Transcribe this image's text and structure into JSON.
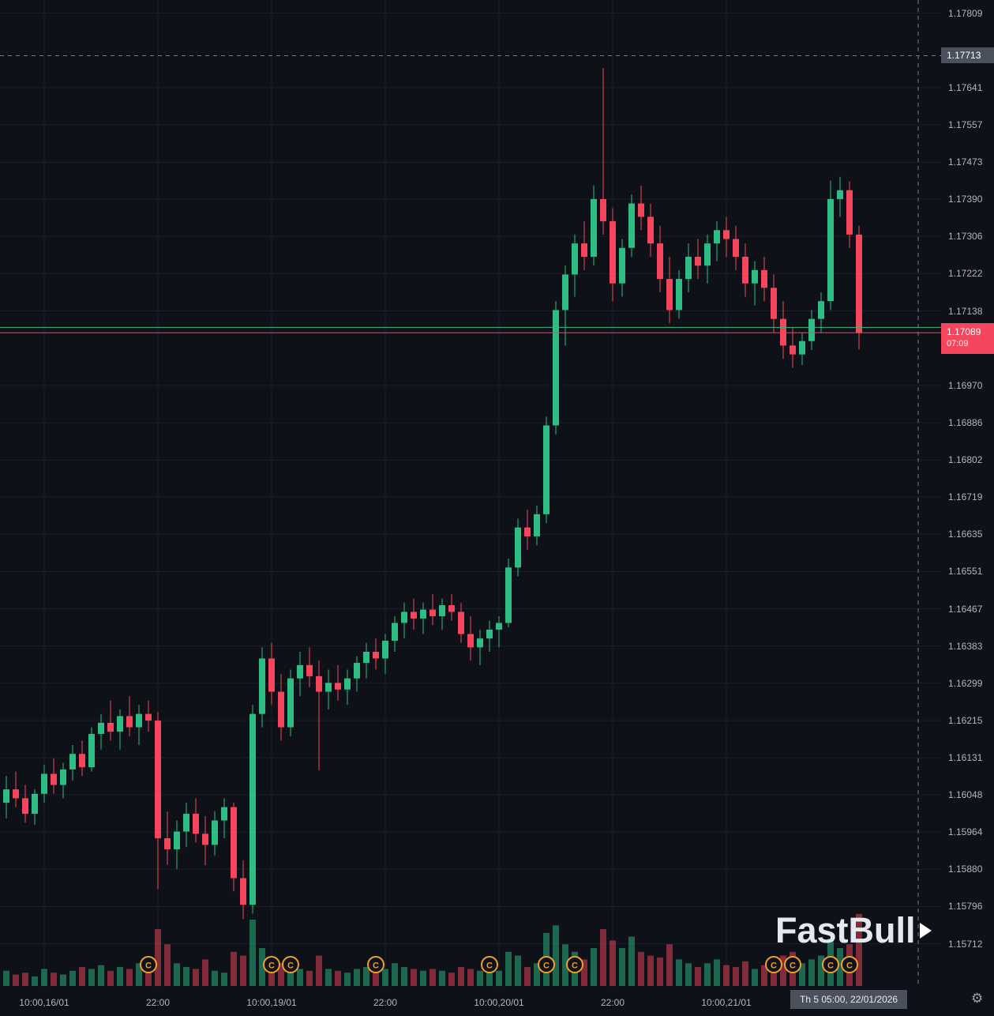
{
  "chart": {
    "background": "#0e1118",
    "grid_color": "#1a1f2b"
  },
  "price_axis": {
    "ticks": [
      "1.17809",
      "1.17641",
      "1.17557",
      "1.17473",
      "1.17390",
      "1.17306",
      "1.17222",
      "1.17138",
      "1.16970",
      "1.16886",
      "1.16802",
      "1.16719",
      "1.16635",
      "1.16551",
      "1.16467",
      "1.16383",
      "1.16299",
      "1.16215",
      "1.16131",
      "1.16048",
      "1.15964",
      "1.15880",
      "1.15796",
      "1.15712"
    ],
    "crosshair_price": "1.17713",
    "current_price": "1.17089",
    "current_countdown": "07:09",
    "current_badge_color": "#f6465d",
    "crosshair_badge_color": "#4a505c"
  },
  "time_axis": {
    "labels": [
      {
        "text": "10:00,16/01",
        "index": 4
      },
      {
        "text": "22:00",
        "index": 16
      },
      {
        "text": "10:00,19/01",
        "index": 28
      },
      {
        "text": "22:00",
        "index": 40
      },
      {
        "text": "10:00,20/01",
        "index": 52
      },
      {
        "text": "22:00",
        "index": 64
      },
      {
        "text": "10:00,21/01",
        "index": 76
      }
    ],
    "crosshair_label": "Th 5 05:00, 22/01/2026"
  },
  "watermark": {
    "text": "FastBull"
  },
  "icons": {
    "settings": "⚙",
    "logo_arrow": "triangle-right",
    "calendar_event": "C"
  },
  "chart_data": {
    "type": "candlestick",
    "y_axis": {
      "price_at_top": 1.178385,
      "price_per_pixel": 1.78e-05,
      "ylim": [
        1.15712,
        1.17838
      ]
    },
    "current_price": 1.17089,
    "secondary_line_price": 1.17101,
    "crosshair": {
      "price": 1.17713,
      "time_label": "Th 5 05:00, 22/01/2026"
    },
    "colors": {
      "up": "#2ebd85",
      "down": "#f6465d",
      "volume_up": "rgba(46,189,133,0.5)",
      "volume_down": "rgba(246,70,93,0.5)",
      "current_line": "#f6465d",
      "secondary_line": "#2ebd85",
      "crosshair": "#787b86",
      "event_marker": "#f0a029"
    },
    "candles": [
      [
        1.1603,
        1.1609,
        1.15995,
        1.1606
      ],
      [
        1.1606,
        1.161,
        1.1602,
        1.1604
      ],
      [
        1.1604,
        1.1607,
        1.15985,
        1.16005
      ],
      [
        1.16005,
        1.1606,
        1.1598,
        1.1605
      ],
      [
        1.1605,
        1.16115,
        1.1603,
        1.16095
      ],
      [
        1.16095,
        1.1613,
        1.1605,
        1.1607
      ],
      [
        1.1607,
        1.1612,
        1.1604,
        1.16105
      ],
      [
        1.16105,
        1.1616,
        1.1608,
        1.1614
      ],
      [
        1.1614,
        1.1617,
        1.1609,
        1.1611
      ],
      [
        1.1611,
        1.162,
        1.161,
        1.16185
      ],
      [
        1.16185,
        1.1623,
        1.1615,
        1.1621
      ],
      [
        1.1621,
        1.1626,
        1.1617,
        1.1619
      ],
      [
        1.1619,
        1.1624,
        1.1615,
        1.16225
      ],
      [
        1.16225,
        1.1627,
        1.1618,
        1.162
      ],
      [
        1.162,
        1.1625,
        1.1616,
        1.1623
      ],
      [
        1.1623,
        1.1626,
        1.1619,
        1.16215
      ],
      [
        1.16215,
        1.16235,
        1.15836,
        1.1595
      ],
      [
        1.1595,
        1.1601,
        1.1589,
        1.15925
      ],
      [
        1.15925,
        1.1599,
        1.1588,
        1.15965
      ],
      [
        1.15965,
        1.1603,
        1.1593,
        1.16005
      ],
      [
        1.16005,
        1.1604,
        1.1594,
        1.1596
      ],
      [
        1.1596,
        1.16,
        1.15889,
        1.15935
      ],
      [
        1.15935,
        1.1601,
        1.1591,
        1.1599
      ],
      [
        1.1599,
        1.1604,
        1.1595,
        1.1602
      ],
      [
        1.1602,
        1.1603,
        1.1583,
        1.1586
      ],
      [
        1.1586,
        1.159,
        1.15768,
        1.158
      ],
      [
        1.158,
        1.1625,
        1.1578,
        1.1623
      ],
      [
        1.1623,
        1.1638,
        1.162,
        1.16355
      ],
      [
        1.16355,
        1.1639,
        1.1625,
        1.1628
      ],
      [
        1.1628,
        1.1632,
        1.1617,
        1.162
      ],
      [
        1.162,
        1.1633,
        1.1618,
        1.1631
      ],
      [
        1.1631,
        1.1637,
        1.1627,
        1.1634
      ],
      [
        1.1634,
        1.1638,
        1.1629,
        1.16315
      ],
      [
        1.16315,
        1.1635,
        1.16103,
        1.1628
      ],
      [
        1.1628,
        1.1633,
        1.1624,
        1.163
      ],
      [
        1.163,
        1.1634,
        1.1626,
        1.16285
      ],
      [
        1.16285,
        1.1633,
        1.1625,
        1.1631
      ],
      [
        1.1631,
        1.1636,
        1.1628,
        1.16345
      ],
      [
        1.16345,
        1.1639,
        1.1631,
        1.1637
      ],
      [
        1.1637,
        1.164,
        1.1633,
        1.16355
      ],
      [
        1.16355,
        1.1641,
        1.1632,
        1.16395
      ],
      [
        1.16395,
        1.1645,
        1.1637,
        1.16435
      ],
      [
        1.16435,
        1.1648,
        1.164,
        1.1646
      ],
      [
        1.1646,
        1.1649,
        1.1642,
        1.16445
      ],
      [
        1.16445,
        1.1648,
        1.1641,
        1.16465
      ],
      [
        1.16465,
        1.165,
        1.1643,
        1.1645
      ],
      [
        1.1645,
        1.1649,
        1.1642,
        1.16475
      ],
      [
        1.16475,
        1.165,
        1.1644,
        1.1646
      ],
      [
        1.1646,
        1.1648,
        1.1639,
        1.1641
      ],
      [
        1.1641,
        1.1645,
        1.1635,
        1.1638
      ],
      [
        1.1638,
        1.1642,
        1.1634,
        1.164
      ],
      [
        1.164,
        1.1644,
        1.1637,
        1.1642
      ],
      [
        1.1642,
        1.1645,
        1.1638,
        1.16435
      ],
      [
        1.16435,
        1.1658,
        1.16425,
        1.1656
      ],
      [
        1.1656,
        1.1667,
        1.1654,
        1.1665
      ],
      [
        1.1665,
        1.1669,
        1.166,
        1.1663
      ],
      [
        1.1663,
        1.167,
        1.1661,
        1.1668
      ],
      [
        1.1668,
        1.169,
        1.1666,
        1.1688
      ],
      [
        1.1688,
        1.1716,
        1.1686,
        1.1714
      ],
      [
        1.1714,
        1.1724,
        1.1706,
        1.1722
      ],
      [
        1.1722,
        1.1731,
        1.1717,
        1.1729
      ],
      [
        1.1729,
        1.1734,
        1.1723,
        1.1726
      ],
      [
        1.1726,
        1.1742,
        1.1724,
        1.1739
      ],
      [
        1.1739,
        1.17685,
        1.1731,
        1.1734
      ],
      [
        1.1734,
        1.1737,
        1.1716,
        1.172
      ],
      [
        1.172,
        1.173,
        1.1717,
        1.1728
      ],
      [
        1.1728,
        1.174,
        1.1726,
        1.1738
      ],
      [
        1.1738,
        1.1742,
        1.1732,
        1.1735
      ],
      [
        1.1735,
        1.1738,
        1.1726,
        1.1729
      ],
      [
        1.1729,
        1.1733,
        1.1718,
        1.1721
      ],
      [
        1.1721,
        1.1726,
        1.1711,
        1.1714
      ],
      [
        1.1714,
        1.1723,
        1.1712,
        1.1721
      ],
      [
        1.1721,
        1.1729,
        1.1718,
        1.1726
      ],
      [
        1.1726,
        1.173,
        1.1721,
        1.1724
      ],
      [
        1.1724,
        1.1731,
        1.172,
        1.1729
      ],
      [
        1.1729,
        1.1734,
        1.1725,
        1.1732
      ],
      [
        1.1732,
        1.1735,
        1.1726,
        1.173
      ],
      [
        1.173,
        1.1733,
        1.1723,
        1.1726
      ],
      [
        1.1726,
        1.1729,
        1.1717,
        1.172
      ],
      [
        1.172,
        1.1725,
        1.1715,
        1.1723
      ],
      [
        1.1723,
        1.1726,
        1.1716,
        1.1719
      ],
      [
        1.1719,
        1.1722,
        1.1709,
        1.1712
      ],
      [
        1.1712,
        1.1716,
        1.1703,
        1.1706
      ],
      [
        1.1706,
        1.171,
        1.1701,
        1.1704
      ],
      [
        1.1704,
        1.1709,
        1.17016,
        1.1707
      ],
      [
        1.1707,
        1.1714,
        1.1705,
        1.1712
      ],
      [
        1.1712,
        1.1718,
        1.1709,
        1.1716
      ],
      [
        1.1716,
        1.17432,
        1.1714,
        1.1739
      ],
      [
        1.1739,
        1.1744,
        1.1735,
        1.1741
      ],
      [
        1.1741,
        1.1743,
        1.1728,
        1.1731
      ],
      [
        1.1731,
        1.1733,
        1.17051,
        1.17089
      ]
    ],
    "volumes": [
      8,
      6,
      7,
      5,
      9,
      7,
      6,
      8,
      10,
      9,
      11,
      8,
      10,
      9,
      12,
      14,
      30,
      22,
      12,
      10,
      9,
      14,
      8,
      7,
      18,
      16,
      35,
      20,
      14,
      12,
      10,
      9,
      8,
      16,
      9,
      8,
      7,
      9,
      10,
      8,
      9,
      12,
      10,
      9,
      8,
      9,
      8,
      7,
      10,
      9,
      8,
      7,
      8,
      18,
      16,
      10,
      12,
      28,
      32,
      22,
      18,
      14,
      20,
      30,
      24,
      20,
      26,
      18,
      16,
      15,
      22,
      14,
      12,
      10,
      12,
      14,
      11,
      10,
      13,
      9,
      11,
      14,
      16,
      18,
      12,
      14,
      16,
      25,
      20,
      22,
      38
    ],
    "event_marker_indices": [
      15,
      28,
      30,
      39,
      51,
      57,
      60,
      81,
      83,
      87,
      89
    ],
    "event_marker_symbol": "C"
  }
}
